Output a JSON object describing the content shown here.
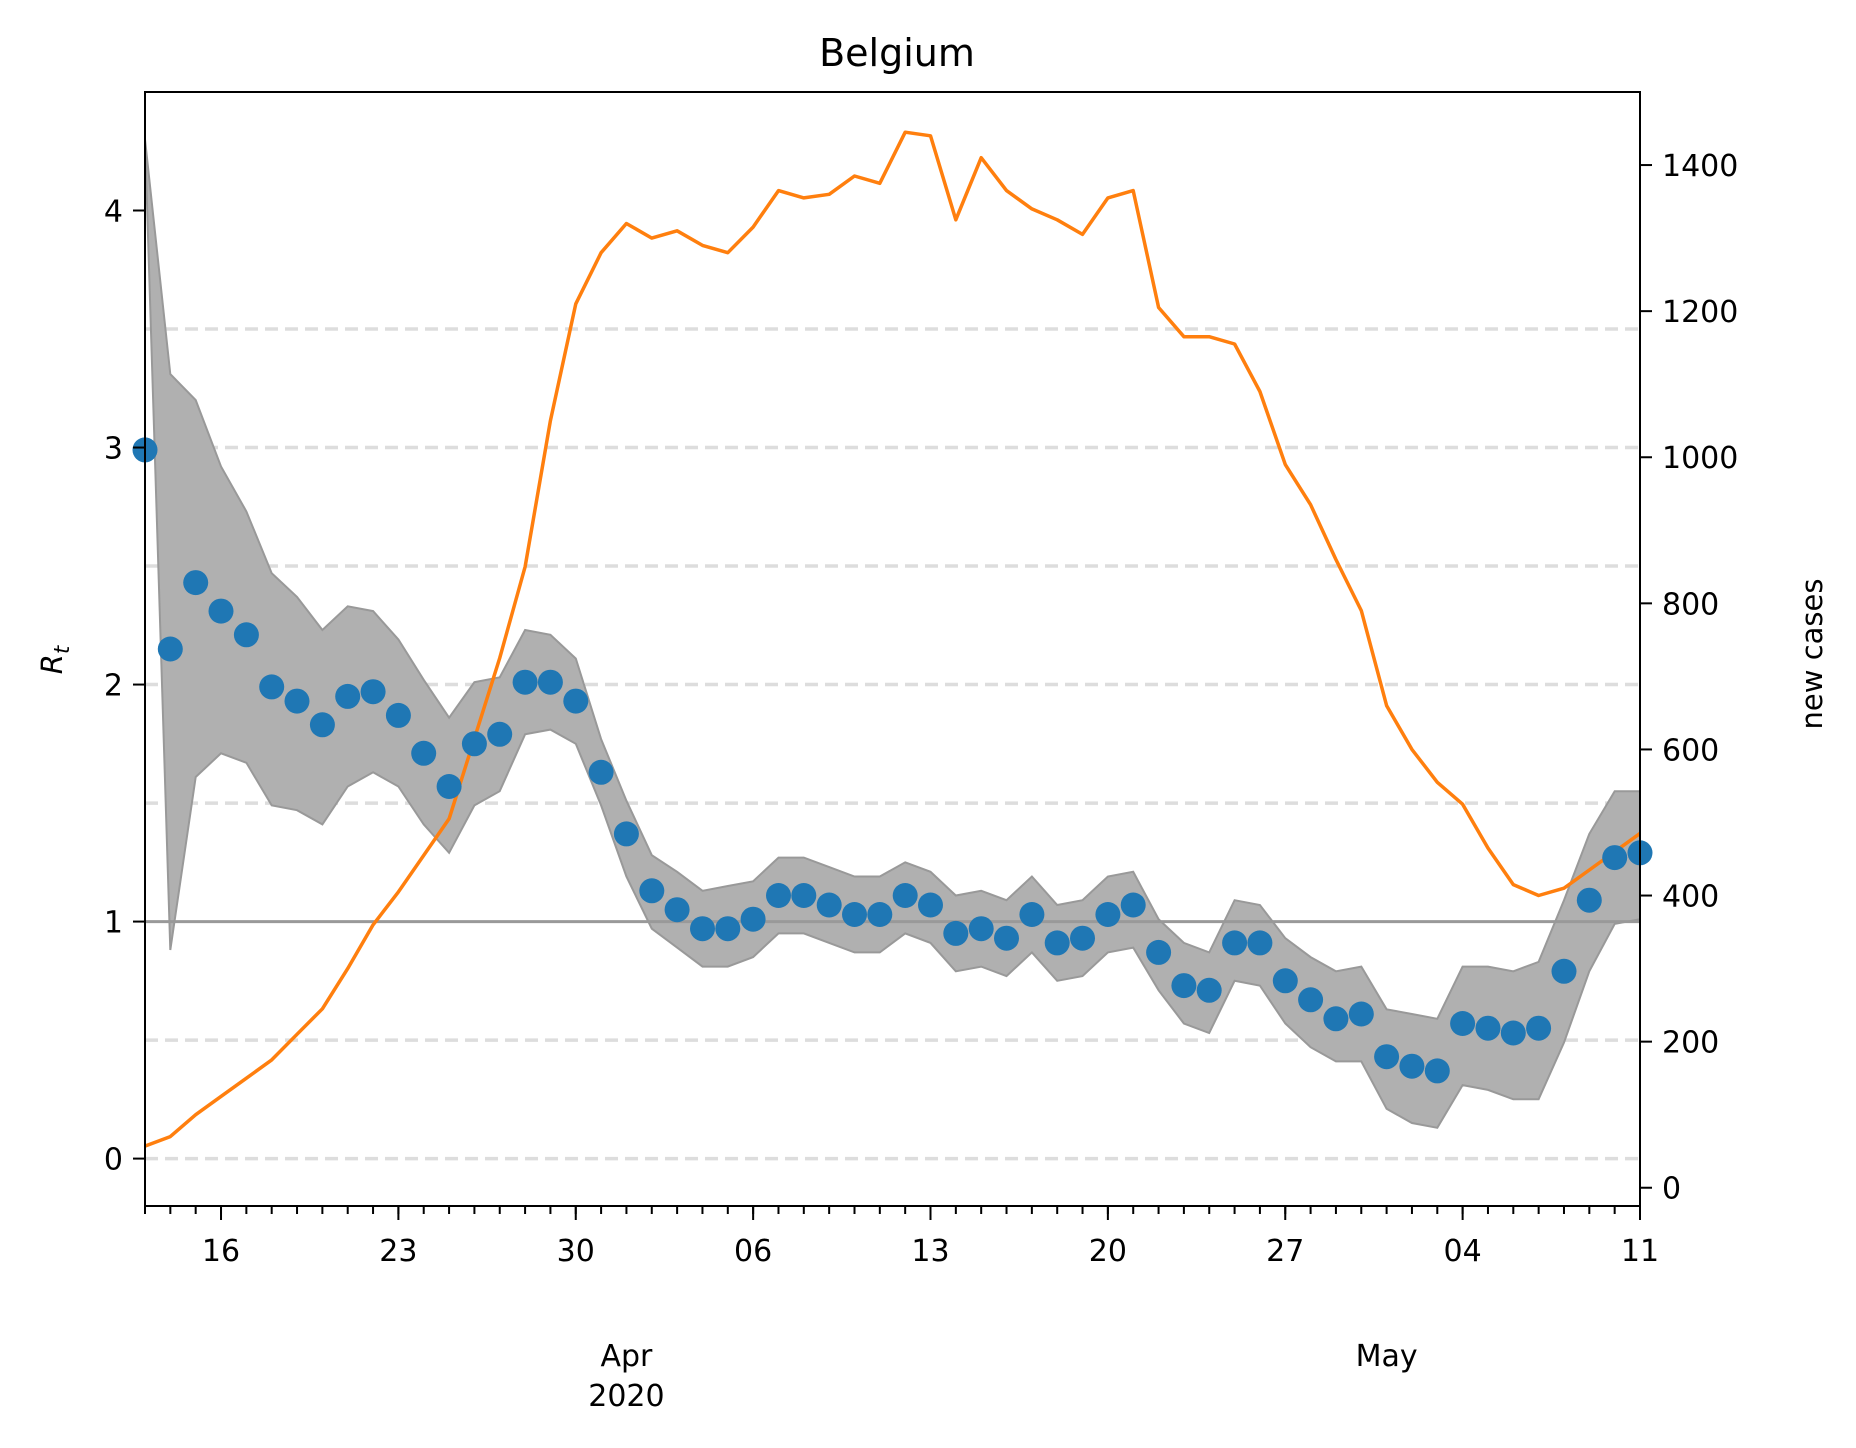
{
  "chart_data": {
    "type": "line",
    "title": "Belgium",
    "ylabel": "R_t",
    "ylabel_main": "R",
    "ylabel_sub": "t",
    "y2label": "new cases",
    "x_start": "2020-03-13",
    "x_end": "2020-05-11",
    "ylim": [
      -0.2,
      4.5
    ],
    "y2lim": [
      -25,
      1500
    ],
    "yticks": [
      0,
      1,
      2,
      3,
      4
    ],
    "y2ticks": [
      0,
      200,
      400,
      600,
      800,
      1000,
      1200,
      1400
    ],
    "xticks": [
      {
        "date": "2020-03-16",
        "label": "16"
      },
      {
        "date": "2020-03-23",
        "label": "23"
      },
      {
        "date": "2020-03-30",
        "label": "30"
      },
      {
        "date": "2020-04-06",
        "label": "06"
      },
      {
        "date": "2020-04-13",
        "label": "13"
      },
      {
        "date": "2020-04-20",
        "label": "20"
      },
      {
        "date": "2020-04-27",
        "label": "27"
      },
      {
        "date": "2020-05-04",
        "label": "04"
      },
      {
        "date": "2020-05-11",
        "label": "11"
      }
    ],
    "month_labels": [
      {
        "date": "2020-04-01",
        "lines": [
          "Apr",
          "2020"
        ]
      },
      {
        "date": "2020-05-01",
        "lines": [
          "May"
        ]
      }
    ],
    "grid_lines_y": [
      0,
      0.5,
      1.5,
      2,
      2.5,
      3,
      3.5
    ],
    "reference_line_y": 1,
    "colors": {
      "rt": "#1f77b4",
      "cases": "#ff7f0e",
      "band": "#b0b0b0",
      "grid": "#dddddd",
      "reference": "#999999"
    },
    "series": [
      {
        "name": "R_t",
        "kind": "scatter",
        "x": [
          "2020-03-13",
          "2020-03-14",
          "2020-03-15",
          "2020-03-16",
          "2020-03-17",
          "2020-03-18",
          "2020-03-19",
          "2020-03-20",
          "2020-03-21",
          "2020-03-22",
          "2020-03-23",
          "2020-03-24",
          "2020-03-25",
          "2020-03-26",
          "2020-03-27",
          "2020-03-28",
          "2020-03-29",
          "2020-03-30",
          "2020-03-31",
          "2020-04-01",
          "2020-04-02",
          "2020-04-03",
          "2020-04-04",
          "2020-04-05",
          "2020-04-06",
          "2020-04-07",
          "2020-04-08",
          "2020-04-09",
          "2020-04-10",
          "2020-04-11",
          "2020-04-12",
          "2020-04-13",
          "2020-04-14",
          "2020-04-15",
          "2020-04-16",
          "2020-04-17",
          "2020-04-18",
          "2020-04-19",
          "2020-04-20",
          "2020-04-21",
          "2020-04-22",
          "2020-04-23",
          "2020-04-24",
          "2020-04-25",
          "2020-04-26",
          "2020-04-27",
          "2020-04-28",
          "2020-04-29",
          "2020-04-30",
          "2020-05-01",
          "2020-05-02",
          "2020-05-03",
          "2020-05-04",
          "2020-05-05",
          "2020-05-06",
          "2020-05-07",
          "2020-05-08",
          "2020-05-09",
          "2020-05-10",
          "2020-05-11"
        ],
        "values": [
          2.99,
          2.15,
          2.43,
          2.31,
          2.21,
          1.99,
          1.93,
          1.83,
          1.95,
          1.97,
          1.87,
          1.71,
          1.57,
          1.75,
          1.79,
          2.01,
          2.01,
          1.93,
          1.63,
          1.37,
          1.13,
          1.05,
          0.97,
          0.97,
          1.01,
          1.11,
          1.11,
          1.07,
          1.03,
          1.03,
          1.11,
          1.07,
          0.95,
          0.97,
          0.93,
          1.03,
          0.91,
          0.93,
          1.03,
          1.07,
          0.87,
          0.73,
          0.71,
          0.91,
          0.91,
          0.75,
          0.67,
          0.59,
          0.61,
          0.43,
          0.39,
          0.37,
          0.57,
          0.55,
          0.53,
          0.55,
          0.79,
          1.09,
          1.27,
          1.29
        ]
      },
      {
        "name": "R_t interval",
        "kind": "band",
        "upper": [
          4.3,
          3.31,
          3.2,
          2.92,
          2.73,
          2.47,
          2.37,
          2.23,
          2.33,
          2.31,
          2.19,
          2.02,
          1.86,
          2.01,
          2.03,
          2.23,
          2.21,
          2.11,
          1.77,
          1.51,
          1.28,
          1.21,
          1.13,
          1.15,
          1.17,
          1.27,
          1.27,
          1.23,
          1.19,
          1.19,
          1.25,
          1.21,
          1.11,
          1.13,
          1.09,
          1.19,
          1.07,
          1.09,
          1.19,
          1.21,
          1.01,
          0.91,
          0.87,
          1.09,
          1.07,
          0.93,
          0.85,
          0.79,
          0.81,
          0.63,
          0.61,
          0.59,
          0.81,
          0.81,
          0.79,
          0.83,
          1.09,
          1.37,
          1.55,
          1.55
        ],
        "lower": [
          4.3,
          0.88,
          1.61,
          1.71,
          1.67,
          1.49,
          1.47,
          1.41,
          1.57,
          1.63,
          1.57,
          1.41,
          1.29,
          1.49,
          1.55,
          1.79,
          1.81,
          1.75,
          1.49,
          1.19,
          0.97,
          0.89,
          0.81,
          0.81,
          0.85,
          0.95,
          0.95,
          0.91,
          0.87,
          0.87,
          0.95,
          0.91,
          0.79,
          0.81,
          0.77,
          0.87,
          0.75,
          0.77,
          0.87,
          0.89,
          0.71,
          0.57,
          0.53,
          0.75,
          0.73,
          0.57,
          0.47,
          0.41,
          0.41,
          0.21,
          0.15,
          0.13,
          0.31,
          0.29,
          0.25,
          0.25,
          0.49,
          0.79,
          0.99,
          1.01
        ]
      },
      {
        "name": "new cases",
        "kind": "line",
        "axis": "right",
        "x": [
          "2020-03-13",
          "2020-03-14",
          "2020-03-15",
          "2020-03-16",
          "2020-03-17",
          "2020-03-18",
          "2020-03-19",
          "2020-03-20",
          "2020-03-21",
          "2020-03-22",
          "2020-03-23",
          "2020-03-24",
          "2020-03-25",
          "2020-03-26",
          "2020-03-27",
          "2020-03-28",
          "2020-03-29",
          "2020-03-30",
          "2020-03-31",
          "2020-04-01",
          "2020-04-02",
          "2020-04-03",
          "2020-04-04",
          "2020-04-05",
          "2020-04-06",
          "2020-04-07",
          "2020-04-08",
          "2020-04-09",
          "2020-04-10",
          "2020-04-11",
          "2020-04-12",
          "2020-04-13",
          "2020-04-14",
          "2020-04-15",
          "2020-04-16",
          "2020-04-17",
          "2020-04-18",
          "2020-04-19",
          "2020-04-20",
          "2020-04-21",
          "2020-04-22",
          "2020-04-23",
          "2020-04-24",
          "2020-04-25",
          "2020-04-26",
          "2020-04-27",
          "2020-04-28",
          "2020-04-29",
          "2020-04-30",
          "2020-05-01",
          "2020-05-02",
          "2020-05-03",
          "2020-05-04",
          "2020-05-05",
          "2020-05-06",
          "2020-05-07",
          "2020-05-08",
          "2020-05-09",
          "2020-05-10",
          "2020-05-11"
        ],
        "values": [
          57,
          70,
          100,
          125,
          150,
          175,
          210,
          245,
          300,
          360,
          405,
          455,
          505,
          615,
          725,
          850,
          1050,
          1210,
          1280,
          1320,
          1300,
          1310,
          1290,
          1280,
          1315,
          1365,
          1355,
          1360,
          1385,
          1375,
          1445,
          1440,
          1325,
          1410,
          1365,
          1340,
          1325,
          1305,
          1355,
          1365,
          1205,
          1165,
          1165,
          1155,
          1090,
          990,
          935,
          860,
          790,
          660,
          600,
          555,
          525,
          465,
          415,
          400,
          410,
          435,
          460,
          485
        ]
      }
    ]
  }
}
